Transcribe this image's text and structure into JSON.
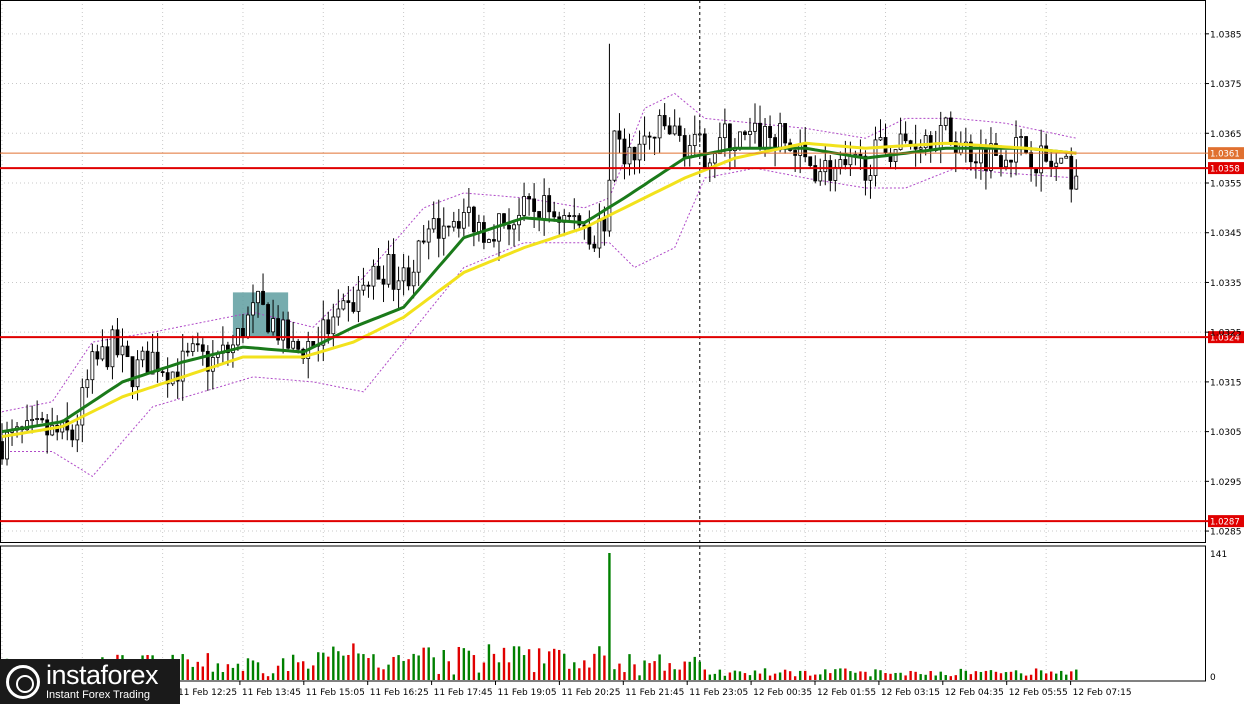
{
  "chart_data": [
    {
      "type": "candlestick",
      "symbol_note": "",
      "price_axis": {
        "ylim": [
          1.0283,
          1.0391
        ],
        "ticks": [
          "1.0385",
          "1.0375",
          "1.0365",
          "1.0355",
          "1.0345",
          "1.0335",
          "1.0325",
          "1.0315",
          "1.0305",
          "1.0295",
          "1.0285"
        ]
      },
      "horizontal_levels": [
        {
          "label": "1.0361",
          "value": 1.0361,
          "color": "#e07030"
        },
        {
          "label": "1.0358",
          "value": 1.0358,
          "color": "#e00000"
        },
        {
          "label": "1.0324",
          "value": 1.0324,
          "color": "#e00000"
        },
        {
          "label": "1.0287",
          "value": 1.0287,
          "color": "#e00000"
        }
      ],
      "time_labels": [
        "11 Feb 12:25",
        "11 Feb 13:45",
        "11 Feb 15:05",
        "11 Feb 16:25",
        "11 Feb 17:45",
        "11 Feb 19:05",
        "11 Feb 20:25",
        "11 Feb 21:45",
        "11 Feb 23:05",
        "12 Feb 00:35",
        "12 Feb 01:55",
        "12 Feb 03:15",
        "12 Feb 04:35",
        "12 Feb 05:55",
        "12 Feb 07:15"
      ],
      "close_path": [
        [
          0,
          1.0303
        ],
        [
          8,
          1.0305
        ],
        [
          14,
          1.0304
        ],
        [
          18,
          1.0318
        ],
        [
          22,
          1.0322
        ],
        [
          26,
          1.0317
        ],
        [
          30,
          1.032
        ],
        [
          34,
          1.0317
        ],
        [
          38,
          1.032
        ],
        [
          42,
          1.0319
        ],
        [
          46,
          1.0322
        ],
        [
          48,
          1.0326
        ],
        [
          51,
          1.033
        ],
        [
          54,
          1.0327
        ],
        [
          56,
          1.0324
        ],
        [
          58,
          1.0321
        ],
        [
          60,
          1.0322
        ],
        [
          64,
          1.0325
        ],
        [
          68,
          1.0328
        ],
        [
          72,
          1.0334
        ],
        [
          76,
          1.0338
        ],
        [
          80,
          1.0336
        ],
        [
          84,
          1.0342
        ],
        [
          88,
          1.0348
        ],
        [
          92,
          1.0349
        ],
        [
          96,
          1.0346
        ],
        [
          100,
          1.0347
        ],
        [
          104,
          1.0349
        ],
        [
          108,
          1.035
        ],
        [
          112,
          1.0348
        ],
        [
          116,
          1.0347
        ],
        [
          118,
          1.0344
        ],
        [
          120,
          1.0348
        ],
        [
          122,
          1.0362
        ],
        [
          125,
          1.036
        ],
        [
          128,
          1.0363
        ],
        [
          132,
          1.0366
        ],
        [
          136,
          1.0363
        ],
        [
          140,
          1.0361
        ],
        [
          144,
          1.0364
        ],
        [
          148,
          1.0363
        ],
        [
          152,
          1.0365
        ],
        [
          156,
          1.0363
        ],
        [
          160,
          1.0359
        ],
        [
          164,
          1.0358
        ],
        [
          168,
          1.0357
        ],
        [
          172,
          1.0359
        ],
        [
          176,
          1.0362
        ],
        [
          180,
          1.0363
        ],
        [
          184,
          1.0365
        ],
        [
          188,
          1.0365
        ],
        [
          192,
          1.0362
        ],
        [
          196,
          1.0361
        ],
        [
          200,
          1.0362
        ],
        [
          204,
          1.0362
        ],
        [
          208,
          1.0359
        ],
        [
          212,
          1.0357
        ],
        [
          214,
          1.0357
        ]
      ],
      "candles_total": 214,
      "spike": {
        "index": 121,
        "high": 1.0383
      },
      "moving_averages": [
        {
          "color": "#1a7a1a",
          "path": [
            [
              0,
              1.0305
            ],
            [
              12,
              1.0307
            ],
            [
              24,
              1.0315
            ],
            [
              36,
              1.0319
            ],
            [
              48,
              1.0322
            ],
            [
              60,
              1.0321
            ],
            [
              70,
              1.0326
            ],
            [
              80,
              1.033
            ],
            [
              92,
              1.0344
            ],
            [
              104,
              1.0348
            ],
            [
              116,
              1.0347
            ],
            [
              124,
              1.0352
            ],
            [
              136,
              1.036
            ],
            [
              146,
              1.0362
            ],
            [
              160,
              1.0362
            ],
            [
              172,
              1.036
            ],
            [
              188,
              1.0362
            ],
            [
              204,
              1.0362
            ],
            [
              214,
              1.0361
            ]
          ]
        },
        {
          "color": "#f2e21c",
          "path": [
            [
              0,
              1.0304
            ],
            [
              12,
              1.0306
            ],
            [
              24,
              1.0312
            ],
            [
              36,
              1.0316
            ],
            [
              48,
              1.032
            ],
            [
              60,
              1.032
            ],
            [
              70,
              1.0323
            ],
            [
              80,
              1.0328
            ],
            [
              92,
              1.0337
            ],
            [
              104,
              1.0342
            ],
            [
              116,
              1.0346
            ],
            [
              124,
              1.035
            ],
            [
              136,
              1.0356
            ],
            [
              146,
              1.036
            ],
            [
              160,
              1.0363
            ],
            [
              172,
              1.0362
            ],
            [
              188,
              1.0363
            ],
            [
              204,
              1.0362
            ],
            [
              214,
              1.0361
            ]
          ]
        }
      ],
      "bands": {
        "color": "#b04ac8",
        "upper": [
          [
            0,
            1.0309
          ],
          [
            10,
            1.0311
          ],
          [
            18,
            1.0323
          ],
          [
            30,
            1.0325
          ],
          [
            50,
            1.0329
          ],
          [
            62,
            1.0326
          ],
          [
            72,
            1.0336
          ],
          [
            84,
            1.035
          ],
          [
            92,
            1.0353
          ],
          [
            104,
            1.0352
          ],
          [
            116,
            1.035
          ],
          [
            121,
            1.0352
          ],
          [
            128,
            1.037
          ],
          [
            134,
            1.0373
          ],
          [
            140,
            1.0368
          ],
          [
            150,
            1.0367
          ],
          [
            160,
            1.0366
          ],
          [
            172,
            1.0364
          ],
          [
            180,
            1.0368
          ],
          [
            190,
            1.0368
          ],
          [
            200,
            1.0367
          ],
          [
            214,
            1.0364
          ]
        ],
        "lower": [
          [
            0,
            1.0301
          ],
          [
            10,
            1.0301
          ],
          [
            18,
            1.0296
          ],
          [
            30,
            1.031
          ],
          [
            50,
            1.0316
          ],
          [
            62,
            1.0315
          ],
          [
            72,
            1.0313
          ],
          [
            84,
            1.0328
          ],
          [
            92,
            1.0338
          ],
          [
            104,
            1.0343
          ],
          [
            116,
            1.0343
          ],
          [
            121,
            1.0343
          ],
          [
            126,
            1.0338
          ],
          [
            134,
            1.0342
          ],
          [
            140,
            1.0356
          ],
          [
            150,
            1.0358
          ],
          [
            160,
            1.0356
          ],
          [
            172,
            1.0354
          ],
          [
            180,
            1.0354
          ],
          [
            190,
            1.0358
          ],
          [
            200,
            1.0357
          ],
          [
            214,
            1.0356
          ]
        ]
      },
      "highlight_zone": {
        "from": 46,
        "to": 57,
        "price_low": 1.0324,
        "price_high": 1.0333,
        "color": "#5e9ea0"
      },
      "vline_index": 139,
      "grid": true
    },
    {
      "type": "bar",
      "title": "",
      "ylim": [
        0,
        141
      ],
      "ticks": [
        "141",
        "0"
      ],
      "spike": {
        "index": 121,
        "value": 141
      },
      "up_color": "#008000",
      "down_color": "#e00000"
    }
  ]
}
